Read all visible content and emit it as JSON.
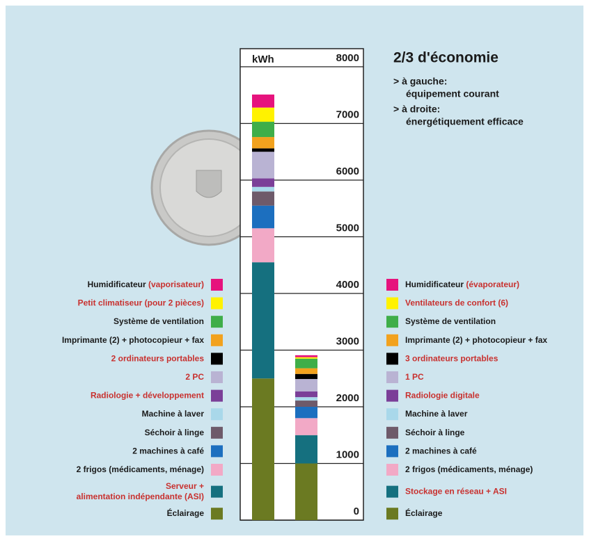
{
  "chart_data": {
    "type": "stacked-bar",
    "title": "2/3 d'économie",
    "notes": [
      "> à gauche:",
      "équipement courant",
      "> à droite:",
      "énergétiquement efficace"
    ],
    "y_label": "kWh",
    "categories": [
      null,
      null
    ],
    "ylim": [
      0,
      8000
    ],
    "yticks": [
      0,
      1000,
      2000,
      3000,
      4000,
      5000,
      6000,
      7000,
      8000
    ],
    "grid": true,
    "series": [
      {
        "color": "#6b7a22",
        "values": [
          2500,
          1000
        ],
        "labels": [
          [
            [
              {
                "text": "Éclairage",
                "color": "#1a1a1a"
              }
            ]
          ],
          [
            [
              {
                "text": "Éclairage",
                "color": "#1a1a1a"
              }
            ]
          ]
        ]
      },
      {
        "color": "#15707f",
        "values": [
          2050,
          500
        ],
        "labels": [
          [
            [
              {
                "text": "Serveur +",
                "color": "#c8312f"
              }
            ],
            [
              {
                "text": "alimentation indépendante (ASI)",
                "color": "#c8312f"
              }
            ]
          ],
          [
            [
              {
                "text": "Stockage en réseau + ASI",
                "color": "#c8312f"
              }
            ]
          ]
        ]
      },
      {
        "color": "#f2a9c6",
        "values": [
          600,
          300
        ],
        "labels": [
          [
            [
              {
                "text": "2 frigos (médicaments, ménage)",
                "color": "#1a1a1a"
              }
            ]
          ],
          [
            [
              {
                "text": "2 frigos (médicaments, ménage)",
                "color": "#1a1a1a"
              }
            ]
          ]
        ]
      },
      {
        "color": "#1c6fbf",
        "values": [
          400,
          200
        ],
        "labels": [
          [
            [
              {
                "text": "2 machines à café",
                "color": "#1a1a1a"
              }
            ]
          ],
          [
            [
              {
                "text": "2 machines à café",
                "color": "#1a1a1a"
              }
            ]
          ]
        ]
      },
      {
        "color": "#6e5a6a",
        "values": [
          250,
          110
        ],
        "labels": [
          [
            [
              {
                "text": "Séchoir à linge",
                "color": "#1a1a1a"
              }
            ]
          ],
          [
            [
              {
                "text": "Séchoir à linge",
                "color": "#1a1a1a"
              }
            ]
          ]
        ]
      },
      {
        "color": "#a9d8ea",
        "values": [
          80,
          60
        ],
        "labels": [
          [
            [
              {
                "text": "Machine à laver",
                "color": "#1a1a1a"
              }
            ]
          ],
          [
            [
              {
                "text": "Machine à laver",
                "color": "#1a1a1a"
              }
            ]
          ]
        ]
      },
      {
        "color": "#7b3f98",
        "values": [
          150,
          100
        ],
        "labels": [
          [
            [
              {
                "text": "Radiologie + développement",
                "color": "#c8312f"
              }
            ]
          ],
          [
            [
              {
                "text": "Radiologie digitale",
                "color": "#c8312f"
              }
            ]
          ]
        ]
      },
      {
        "color": "#b9b3d3",
        "values": [
          470,
          220
        ],
        "labels": [
          [
            [
              {
                "text": "2 PC",
                "color": "#c8312f"
              }
            ]
          ],
          [
            [
              {
                "text": "1 PC",
                "color": "#c8312f"
              }
            ]
          ]
        ]
      },
      {
        "color": "#000000",
        "values": [
          60,
          90
        ],
        "labels": [
          [
            [
              {
                "text": "2 ordinateurs portables",
                "color": "#c8312f"
              }
            ]
          ],
          [
            [
              {
                "text": "3 ordinateurs portables",
                "color": "#c8312f"
              }
            ]
          ]
        ]
      },
      {
        "color": "#f2a21e",
        "values": [
          200,
          100
        ],
        "labels": [
          [
            [
              {
                "text": "Imprimante (2) + photocopieur + fax",
                "color": "#1a1a1a"
              }
            ]
          ],
          [
            [
              {
                "text": "Imprimante (2) + photocopieur + fax",
                "color": "#1a1a1a"
              }
            ]
          ]
        ]
      },
      {
        "color": "#3fae49",
        "values": [
          270,
          170
        ],
        "labels": [
          [
            [
              {
                "text": "Système de ventilation",
                "color": "#1a1a1a"
              }
            ]
          ],
          [
            [
              {
                "text": "Système de ventilation",
                "color": "#1a1a1a"
              }
            ]
          ]
        ]
      },
      {
        "color": "#fff200",
        "values": [
          250,
          25
        ],
        "labels": [
          [
            [
              {
                "text": "Petit climatiseur (pour 2 pièces)",
                "color": "#c8312f"
              }
            ]
          ],
          [
            [
              {
                "text": "Ventilateurs de confort (6)",
                "color": "#c8312f"
              }
            ]
          ]
        ]
      },
      {
        "color": "#e6137d",
        "values": [
          230,
          35
        ],
        "labels": [
          [
            [
              {
                "text": "Humidificateur ",
                "color": "#1a1a1a"
              },
              {
                "text": "(vaporisateur)",
                "color": "#c8312f"
              }
            ]
          ],
          [
            [
              {
                "text": "Humidificateur ",
                "color": "#1a1a1a"
              },
              {
                "text": "(évaporateur)",
                "color": "#c8312f"
              }
            ]
          ]
        ]
      }
    ]
  }
}
